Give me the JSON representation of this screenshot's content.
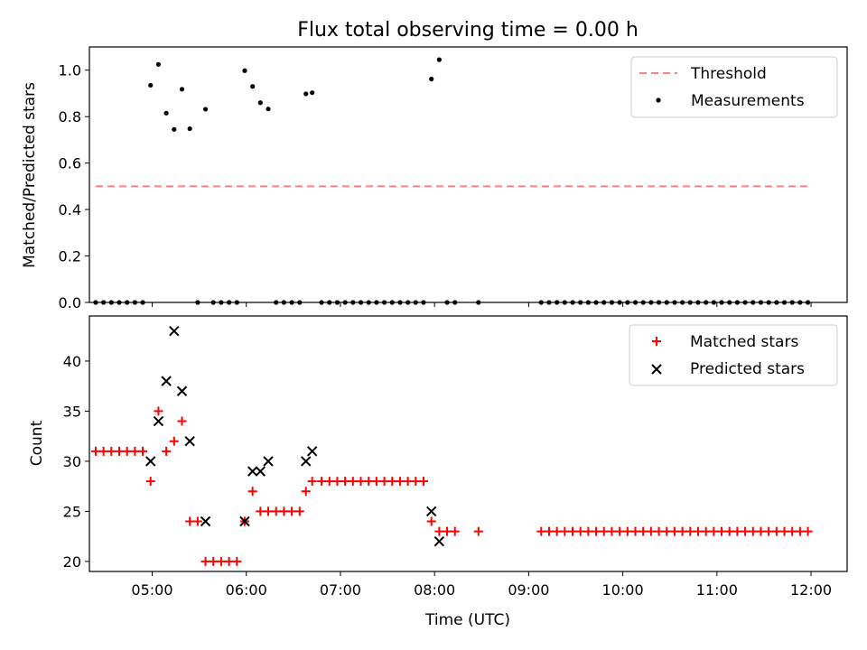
{
  "chart_data": [
    {
      "type": "scatter",
      "title": "Flux total observing time = 0.00 h",
      "xlabel": "",
      "ylabel": "Matched/Predicted stars",
      "ylim": [
        0,
        1.1
      ],
      "xlim": [
        "04:20",
        "12:23"
      ],
      "yticks": [
        "0.0",
        "0.2",
        "0.4",
        "0.6",
        "0.8",
        "1.0"
      ],
      "legend": {
        "position": "top-right",
        "entries": [
          "Threshold",
          "Measurements"
        ]
      },
      "colors": {
        "threshold": "#ff7f7f",
        "measurements": "#000000"
      },
      "threshold": {
        "name": "Threshold",
        "value": 0.5,
        "x_start": "04:24",
        "x_end": "11:58"
      },
      "series": [
        {
          "name": "Measurements",
          "points": [
            [
              "04:24",
              0
            ],
            [
              "04:29",
              0
            ],
            [
              "04:34",
              0
            ],
            [
              "04:39",
              0
            ],
            [
              "04:44",
              0
            ],
            [
              "04:49",
              0
            ],
            [
              "04:54",
              0
            ],
            [
              "04:59",
              0.935
            ],
            [
              "05:04",
              1.025
            ],
            [
              "05:09",
              0.815
            ],
            [
              "05:14",
              0.745
            ],
            [
              "05:19",
              0.918
            ],
            [
              "05:24",
              0.748
            ],
            [
              "05:29",
              0
            ],
            [
              "05:34",
              0.832
            ],
            [
              "05:39",
              0
            ],
            [
              "05:44",
              0
            ],
            [
              "05:49",
              0
            ],
            [
              "05:54",
              0
            ],
            [
              "05:59",
              0.998
            ],
            [
              "06:04",
              0.93
            ],
            [
              "06:09",
              0.86
            ],
            [
              "06:14",
              0.833
            ],
            [
              "06:19",
              0
            ],
            [
              "06:24",
              0
            ],
            [
              "06:29",
              0
            ],
            [
              "06:34",
              0
            ],
            [
              "06:38",
              0.898
            ],
            [
              "06:42",
              0.903
            ],
            [
              "06:48",
              0
            ],
            [
              "06:53",
              0
            ],
            [
              "06:58",
              0
            ],
            [
              "07:03",
              0
            ],
            [
              "07:08",
              0
            ],
            [
              "07:13",
              0
            ],
            [
              "07:18",
              0
            ],
            [
              "07:23",
              0
            ],
            [
              "07:28",
              0
            ],
            [
              "07:33",
              0
            ],
            [
              "07:38",
              0
            ],
            [
              "07:43",
              0
            ],
            [
              "07:48",
              0
            ],
            [
              "07:53",
              0
            ],
            [
              "07:58",
              0.962
            ],
            [
              "08:03",
              1.045
            ],
            [
              "08:08",
              0
            ],
            [
              "08:13",
              0
            ],
            [
              "08:28",
              0
            ],
            [
              "09:08",
              0
            ],
            [
              "09:13",
              0
            ],
            [
              "09:18",
              0
            ],
            [
              "09:23",
              0
            ],
            [
              "09:28",
              0
            ],
            [
              "09:33",
              0
            ],
            [
              "09:38",
              0
            ],
            [
              "09:43",
              0
            ],
            [
              "09:48",
              0
            ],
            [
              "09:53",
              0
            ],
            [
              "09:58",
              0
            ],
            [
              "10:03",
              0
            ],
            [
              "10:08",
              0
            ],
            [
              "10:13",
              0
            ],
            [
              "10:18",
              0
            ],
            [
              "10:23",
              0
            ],
            [
              "10:28",
              0
            ],
            [
              "10:33",
              0
            ],
            [
              "10:38",
              0
            ],
            [
              "10:43",
              0
            ],
            [
              "10:48",
              0
            ],
            [
              "10:53",
              0
            ],
            [
              "10:58",
              0
            ],
            [
              "11:03",
              0
            ],
            [
              "11:08",
              0
            ],
            [
              "11:13",
              0
            ],
            [
              "11:18",
              0
            ],
            [
              "11:23",
              0
            ],
            [
              "11:28",
              0
            ],
            [
              "11:33",
              0
            ],
            [
              "11:38",
              0
            ],
            [
              "11:43",
              0
            ],
            [
              "11:48",
              0
            ],
            [
              "11:53",
              0
            ],
            [
              "11:58",
              0
            ]
          ]
        }
      ]
    },
    {
      "type": "scatter",
      "title": "",
      "xlabel": "Time (UTC)",
      "ylabel": "Count",
      "ylim": [
        19,
        44.5
      ],
      "xlim": [
        "04:20",
        "12:23"
      ],
      "yticks": [
        "20",
        "25",
        "30",
        "35",
        "40"
      ],
      "xticks": [
        "05:00",
        "06:00",
        "07:00",
        "08:00",
        "09:00",
        "10:00",
        "11:00",
        "12:00"
      ],
      "legend": {
        "position": "top-right",
        "entries": [
          "Matched stars",
          "Predicted stars"
        ]
      },
      "colors": {
        "matched": "#ff0000",
        "predicted": "#000000"
      },
      "series": [
        {
          "name": "Matched stars",
          "points": [
            [
              "04:24",
              31
            ],
            [
              "04:29",
              31
            ],
            [
              "04:34",
              31
            ],
            [
              "04:39",
              31
            ],
            [
              "04:44",
              31
            ],
            [
              "04:49",
              31
            ],
            [
              "04:54",
              31
            ],
            [
              "04:59",
              28
            ],
            [
              "05:04",
              35
            ],
            [
              "05:09",
              31
            ],
            [
              "05:14",
              32
            ],
            [
              "05:19",
              34
            ],
            [
              "05:24",
              24
            ],
            [
              "05:29",
              24
            ],
            [
              "05:34",
              20
            ],
            [
              "05:39",
              20
            ],
            [
              "05:44",
              20
            ],
            [
              "05:49",
              20
            ],
            [
              "05:54",
              20
            ],
            [
              "05:59",
              24
            ],
            [
              "06:04",
              27
            ],
            [
              "06:09",
              25
            ],
            [
              "06:14",
              25
            ],
            [
              "06:19",
              25
            ],
            [
              "06:24",
              25
            ],
            [
              "06:29",
              25
            ],
            [
              "06:34",
              25
            ],
            [
              "06:38",
              27
            ],
            [
              "06:42",
              28
            ],
            [
              "06:48",
              28
            ],
            [
              "06:53",
              28
            ],
            [
              "06:58",
              28
            ],
            [
              "07:03",
              28
            ],
            [
              "07:08",
              28
            ],
            [
              "07:13",
              28
            ],
            [
              "07:18",
              28
            ],
            [
              "07:23",
              28
            ],
            [
              "07:28",
              28
            ],
            [
              "07:33",
              28
            ],
            [
              "07:38",
              28
            ],
            [
              "07:43",
              28
            ],
            [
              "07:48",
              28
            ],
            [
              "07:53",
              28
            ],
            [
              "07:58",
              24
            ],
            [
              "08:03",
              23
            ],
            [
              "08:08",
              23
            ],
            [
              "08:13",
              23
            ],
            [
              "08:28",
              23
            ],
            [
              "09:08",
              23
            ],
            [
              "09:13",
              23
            ],
            [
              "09:18",
              23
            ],
            [
              "09:23",
              23
            ],
            [
              "09:28",
              23
            ],
            [
              "09:33",
              23
            ],
            [
              "09:38",
              23
            ],
            [
              "09:43",
              23
            ],
            [
              "09:48",
              23
            ],
            [
              "09:53",
              23
            ],
            [
              "09:58",
              23
            ],
            [
              "10:03",
              23
            ],
            [
              "10:08",
              23
            ],
            [
              "10:13",
              23
            ],
            [
              "10:18",
              23
            ],
            [
              "10:23",
              23
            ],
            [
              "10:28",
              23
            ],
            [
              "10:33",
              23
            ],
            [
              "10:38",
              23
            ],
            [
              "10:43",
              23
            ],
            [
              "10:48",
              23
            ],
            [
              "10:53",
              23
            ],
            [
              "10:58",
              23
            ],
            [
              "11:03",
              23
            ],
            [
              "11:08",
              23
            ],
            [
              "11:13",
              23
            ],
            [
              "11:18",
              23
            ],
            [
              "11:23",
              23
            ],
            [
              "11:28",
              23
            ],
            [
              "11:33",
              23
            ],
            [
              "11:38",
              23
            ],
            [
              "11:43",
              23
            ],
            [
              "11:48",
              23
            ],
            [
              "11:53",
              23
            ],
            [
              "11:58",
              23
            ]
          ]
        },
        {
          "name": "Predicted stars",
          "points": [
            [
              "04:59",
              30
            ],
            [
              "05:04",
              34
            ],
            [
              "05:09",
              38
            ],
            [
              "05:14",
              43
            ],
            [
              "05:19",
              37
            ],
            [
              "05:24",
              32
            ],
            [
              "05:34",
              24
            ],
            [
              "05:59",
              24
            ],
            [
              "06:04",
              29
            ],
            [
              "06:09",
              29
            ],
            [
              "06:14",
              30
            ],
            [
              "06:38",
              30
            ],
            [
              "06:42",
              31
            ],
            [
              "07:58",
              25
            ],
            [
              "08:03",
              22
            ]
          ]
        }
      ]
    }
  ]
}
